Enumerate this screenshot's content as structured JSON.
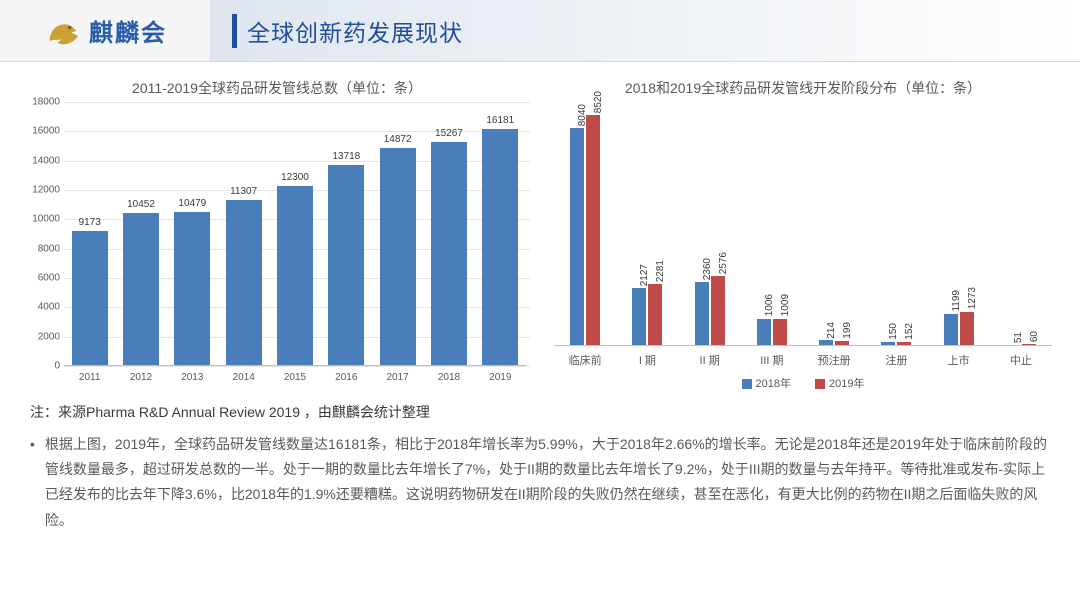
{
  "header": {
    "logo_text": "麒麟会",
    "title": "全球创新药发展现状"
  },
  "chart_left": {
    "type": "bar",
    "title": "2011-2019全球药品研发管线总数（单位：条）",
    "categories": [
      "2011",
      "2012",
      "2013",
      "2014",
      "2015",
      "2016",
      "2017",
      "2018",
      "2019"
    ],
    "values": [
      9173,
      10452,
      10479,
      11307,
      12300,
      13718,
      14872,
      15267,
      16181
    ],
    "bar_color": "#4a7ebb",
    "ylim": [
      0,
      18000
    ],
    "ytick_step": 2000,
    "yticks": [
      "0",
      "2000",
      "4000",
      "6000",
      "8000",
      "10000",
      "12000",
      "14000",
      "16000",
      "18000"
    ],
    "grid_color": "#e6e6e6",
    "label_color": "#595959",
    "label_fontsize": 10
  },
  "chart_right": {
    "type": "grouped-bar",
    "title": "2018和2019全球药品研发管线开发阶段分布（单位：条）",
    "categories": [
      "临床前",
      "I 期",
      "II 期",
      "III 期",
      "预注册",
      "注册",
      "上市",
      "中止"
    ],
    "series": [
      {
        "name": "2018年",
        "color": "#4a7ebb",
        "values": [
          8040,
          2127,
          2360,
          1006,
          214,
          150,
          1199,
          51
        ]
      },
      {
        "name": "2019年",
        "color": "#be4b48",
        "values": [
          8520,
          2281,
          2576,
          1009,
          199,
          152,
          1273,
          60
        ]
      }
    ],
    "ymax_visual": 9000,
    "label_color": "#595959",
    "label_fontsize": 10
  },
  "note": "注：来源Pharma R&D Annual Review 2019 ，由麒麟会统计整理",
  "bullet_text": "根据上图，2019年，全球药品研发管线数量达16181条，相比于2018年增长率为5.99%，大于2018年2.66%的增长率。无论是2018年还是2019年处于临床前阶段的管线数量最多，超过研发总数的一半。处于一期的数量比去年增长了7%，处于II期的数量比去年增长了9.2%，处于III期的数量与去年持平。等待批准或发布-实际上已经发布的比去年下降3.6%，比2018年的1.9%还要糟糕。这说明药物研发在II期阶段的失败仍然在继续，甚至在恶化，有更大比例的药物在II期之后面临失败的风险。"
}
